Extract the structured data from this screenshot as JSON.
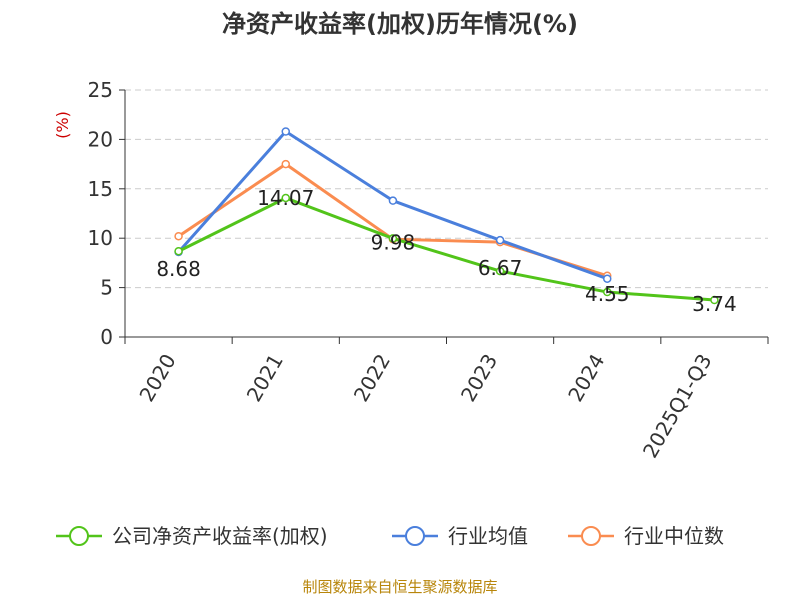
{
  "chart_data": {
    "type": "line",
    "title": "净资产收益率(加权)历年情况(%)",
    "ylabel": "(%)",
    "xlabel": "",
    "categories": [
      "2020",
      "2021",
      "2022",
      "2023",
      "2024",
      "2025Q1-Q3"
    ],
    "ylim": [
      0,
      25
    ],
    "yticks": [
      0,
      5,
      10,
      15,
      20,
      25
    ],
    "grid": true,
    "legend_position": "bottom",
    "series": [
      {
        "name": "公司净资产收益率(加权)",
        "color": "#52c41a",
        "values": [
          8.68,
          14.07,
          9.98,
          6.67,
          4.55,
          3.74
        ],
        "labels": [
          "8.68",
          "14.07",
          "9.98",
          "6.67",
          "4.55",
          "3.74"
        ]
      },
      {
        "name": "行业均值",
        "color": "#4a7fdc",
        "values": [
          8.6,
          20.8,
          13.8,
          9.8,
          5.9,
          null
        ]
      },
      {
        "name": "行业中位数",
        "color": "#fa8c50",
        "values": [
          10.2,
          17.5,
          9.9,
          9.6,
          6.2,
          null
        ]
      }
    ],
    "source": "制图数据来自恒生聚源数据库"
  }
}
